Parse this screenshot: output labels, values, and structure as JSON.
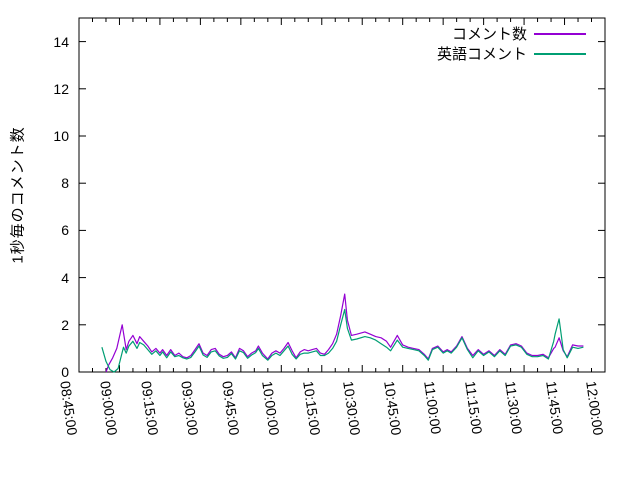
{
  "window": {
    "background": "#ffffff",
    "axis_color": "#000000",
    "text_color": "#000000"
  },
  "chart_data": {
    "type": "line",
    "title": "",
    "xlabel": "",
    "ylabel": "1秒毎のコメント数",
    "xlim": [
      0,
      195
    ],
    "ylim": [
      0,
      15
    ],
    "x_axis_start_time": "08:45:00",
    "x_axis_end_time": "12:00:00",
    "x_minor_tick_every_minutes": 5,
    "grid": false,
    "legend_position": "top-right-inside",
    "x_ticks": [
      {
        "minutes": 0,
        "label": "08:45:00"
      },
      {
        "minutes": 15,
        "label": "09:00:00"
      },
      {
        "minutes": 30,
        "label": "09:15:00"
      },
      {
        "minutes": 45,
        "label": "09:30:00"
      },
      {
        "minutes": 60,
        "label": "09:45:00"
      },
      {
        "minutes": 75,
        "label": "10:00:00"
      },
      {
        "minutes": 90,
        "label": "10:15:00"
      },
      {
        "minutes": 105,
        "label": "10:30:00"
      },
      {
        "minutes": 120,
        "label": "10:45:00"
      },
      {
        "minutes": 135,
        "label": "11:00:00"
      },
      {
        "minutes": 150,
        "label": "11:15:00"
      },
      {
        "minutes": 165,
        "label": "11:30:00"
      },
      {
        "minutes": 180,
        "label": "11:45:00"
      },
      {
        "minutes": 195,
        "label": "12:00:00"
      }
    ],
    "y_ticks": [
      {
        "value": 0,
        "label": "0"
      },
      {
        "value": 2,
        "label": "2"
      },
      {
        "value": 4,
        "label": "4"
      },
      {
        "value": 6,
        "label": "6"
      },
      {
        "value": 8,
        "label": "8"
      },
      {
        "value": 10,
        "label": "10"
      },
      {
        "value": 12,
        "label": "12"
      },
      {
        "value": 14,
        "label": "14"
      }
    ],
    "series": [
      {
        "name": "コメント数",
        "color": "#9400d3",
        "points": [
          [
            10,
            0.0
          ],
          [
            11,
            0.3
          ],
          [
            12.5,
            0.6
          ],
          [
            14,
            1.0
          ],
          [
            16,
            2.0
          ],
          [
            17.5,
            0.95
          ],
          [
            18.5,
            1.3
          ],
          [
            20,
            1.55
          ],
          [
            21.5,
            1.2
          ],
          [
            22.5,
            1.5
          ],
          [
            24,
            1.3
          ],
          [
            25.5,
            1.1
          ],
          [
            27,
            0.85
          ],
          [
            28.5,
            1.0
          ],
          [
            30,
            0.8
          ],
          [
            31,
            0.95
          ],
          [
            32.5,
            0.7
          ],
          [
            34,
            0.95
          ],
          [
            35.5,
            0.7
          ],
          [
            37,
            0.8
          ],
          [
            38.5,
            0.65
          ],
          [
            40,
            0.6
          ],
          [
            41.5,
            0.7
          ],
          [
            43,
            0.95
          ],
          [
            44.5,
            1.2
          ],
          [
            46,
            0.8
          ],
          [
            47.5,
            0.7
          ],
          [
            49,
            0.95
          ],
          [
            50.5,
            1.0
          ],
          [
            52,
            0.75
          ],
          [
            53.5,
            0.65
          ],
          [
            55,
            0.7
          ],
          [
            56.5,
            0.85
          ],
          [
            58,
            0.6
          ],
          [
            59.5,
            1.0
          ],
          [
            61,
            0.9
          ],
          [
            62.5,
            0.65
          ],
          [
            64,
            0.8
          ],
          [
            65.5,
            0.9
          ],
          [
            66.5,
            1.1
          ],
          [
            68,
            0.8
          ],
          [
            70,
            0.55
          ],
          [
            71.5,
            0.8
          ],
          [
            73,
            0.9
          ],
          [
            74.5,
            0.8
          ],
          [
            76,
            1.0
          ],
          [
            77.5,
            1.25
          ],
          [
            79,
            0.9
          ],
          [
            80.5,
            0.6
          ],
          [
            82,
            0.85
          ],
          [
            83.5,
            0.95
          ],
          [
            85,
            0.9
          ],
          [
            86.5,
            0.95
          ],
          [
            88,
            1.0
          ],
          [
            89.5,
            0.8
          ],
          [
            91,
            0.75
          ],
          [
            92.5,
            0.95
          ],
          [
            94,
            1.2
          ],
          [
            95.5,
            1.6
          ],
          [
            97,
            2.4
          ],
          [
            98.5,
            3.3
          ],
          [
            99.5,
            2.2
          ],
          [
            101,
            1.55
          ],
          [
            103,
            1.6
          ],
          [
            106,
            1.7
          ],
          [
            108,
            1.6
          ],
          [
            110,
            1.5
          ],
          [
            112,
            1.45
          ],
          [
            114,
            1.3
          ],
          [
            115.5,
            1.05
          ],
          [
            118,
            1.55
          ],
          [
            120,
            1.15
          ],
          [
            122,
            1.05
          ],
          [
            124,
            1.0
          ],
          [
            126,
            0.95
          ],
          [
            128,
            0.75
          ],
          [
            129.5,
            0.55
          ],
          [
            131,
            1.0
          ],
          [
            133,
            1.1
          ],
          [
            135,
            0.85
          ],
          [
            136.5,
            0.95
          ],
          [
            138,
            0.85
          ],
          [
            140,
            1.1
          ],
          [
            142,
            1.5
          ],
          [
            144,
            1.0
          ],
          [
            146,
            0.7
          ],
          [
            148,
            0.95
          ],
          [
            150,
            0.75
          ],
          [
            152,
            0.9
          ],
          [
            154,
            0.7
          ],
          [
            156,
            0.95
          ],
          [
            158,
            0.75
          ],
          [
            160,
            1.15
          ],
          [
            162,
            1.2
          ],
          [
            164,
            1.1
          ],
          [
            166,
            0.8
          ],
          [
            168,
            0.7
          ],
          [
            170,
            0.7
          ],
          [
            172,
            0.75
          ],
          [
            174,
            0.6
          ],
          [
            176,
            1.0
          ],
          [
            176.5,
            1.05
          ],
          [
            178,
            1.45
          ],
          [
            179.5,
            0.9
          ],
          [
            181,
            0.65
          ],
          [
            183,
            1.15
          ],
          [
            185,
            1.1
          ],
          [
            187,
            1.1
          ]
        ]
      },
      {
        "name": "英語コメント",
        "color": "#009e73",
        "points": [
          [
            8.5,
            1.05
          ],
          [
            10,
            0.45
          ],
          [
            11.5,
            0.1
          ],
          [
            13,
            0.0
          ],
          [
            14.5,
            0.15
          ],
          [
            16.5,
            1.05
          ],
          [
            17.5,
            0.8
          ],
          [
            18.5,
            1.1
          ],
          [
            20,
            1.3
          ],
          [
            21.5,
            1.0
          ],
          [
            22.5,
            1.25
          ],
          [
            24,
            1.15
          ],
          [
            25.5,
            0.95
          ],
          [
            27,
            0.75
          ],
          [
            28.5,
            0.9
          ],
          [
            30,
            0.7
          ],
          [
            31,
            0.85
          ],
          [
            32.5,
            0.6
          ],
          [
            34,
            0.85
          ],
          [
            35.5,
            0.65
          ],
          [
            37,
            0.7
          ],
          [
            38.5,
            0.6
          ],
          [
            40,
            0.55
          ],
          [
            41.5,
            0.62
          ],
          [
            43,
            0.85
          ],
          [
            44.5,
            1.1
          ],
          [
            46,
            0.72
          ],
          [
            47.5,
            0.62
          ],
          [
            49,
            0.85
          ],
          [
            50.5,
            0.9
          ],
          [
            52,
            0.68
          ],
          [
            53.5,
            0.58
          ],
          [
            55,
            0.62
          ],
          [
            56.5,
            0.78
          ],
          [
            58,
            0.55
          ],
          [
            59.5,
            0.9
          ],
          [
            61,
            0.82
          ],
          [
            62.5,
            0.58
          ],
          [
            64,
            0.72
          ],
          [
            65.5,
            0.82
          ],
          [
            66.5,
            1.0
          ],
          [
            68,
            0.7
          ],
          [
            70,
            0.5
          ],
          [
            71.5,
            0.7
          ],
          [
            73,
            0.8
          ],
          [
            74.5,
            0.7
          ],
          [
            76,
            0.9
          ],
          [
            77.5,
            1.1
          ],
          [
            79,
            0.75
          ],
          [
            80.5,
            0.55
          ],
          [
            82,
            0.75
          ],
          [
            83.5,
            0.8
          ],
          [
            85,
            0.8
          ],
          [
            86.5,
            0.85
          ],
          [
            88,
            0.9
          ],
          [
            89.5,
            0.7
          ],
          [
            91,
            0.7
          ],
          [
            92.5,
            0.8
          ],
          [
            94,
            1.0
          ],
          [
            95.5,
            1.3
          ],
          [
            97,
            2.0
          ],
          [
            98.5,
            2.65
          ],
          [
            99.5,
            1.85
          ],
          [
            101,
            1.35
          ],
          [
            103,
            1.4
          ],
          [
            106,
            1.5
          ],
          [
            108,
            1.45
          ],
          [
            110,
            1.35
          ],
          [
            112,
            1.2
          ],
          [
            114,
            1.05
          ],
          [
            115.5,
            0.9
          ],
          [
            118,
            1.35
          ],
          [
            120,
            1.05
          ],
          [
            122,
            1.0
          ],
          [
            124,
            0.95
          ],
          [
            126,
            0.9
          ],
          [
            128,
            0.7
          ],
          [
            129.5,
            0.5
          ],
          [
            131,
            0.95
          ],
          [
            133,
            1.05
          ],
          [
            135,
            0.8
          ],
          [
            136.5,
            0.9
          ],
          [
            138,
            0.8
          ],
          [
            140,
            1.05
          ],
          [
            142,
            1.45
          ],
          [
            144,
            0.95
          ],
          [
            146,
            0.6
          ],
          [
            148,
            0.9
          ],
          [
            150,
            0.7
          ],
          [
            152,
            0.85
          ],
          [
            154,
            0.65
          ],
          [
            156,
            0.9
          ],
          [
            158,
            0.7
          ],
          [
            160,
            1.1
          ],
          [
            162,
            1.15
          ],
          [
            164,
            1.05
          ],
          [
            166,
            0.75
          ],
          [
            168,
            0.65
          ],
          [
            170,
            0.65
          ],
          [
            172,
            0.7
          ],
          [
            174,
            0.55
          ],
          [
            176,
            1.3
          ],
          [
            176.5,
            1.6
          ],
          [
            178,
            2.25
          ],
          [
            179.5,
            0.95
          ],
          [
            181,
            0.6
          ],
          [
            183,
            1.05
          ],
          [
            185,
            1.0
          ],
          [
            187,
            1.05
          ]
        ]
      }
    ]
  }
}
